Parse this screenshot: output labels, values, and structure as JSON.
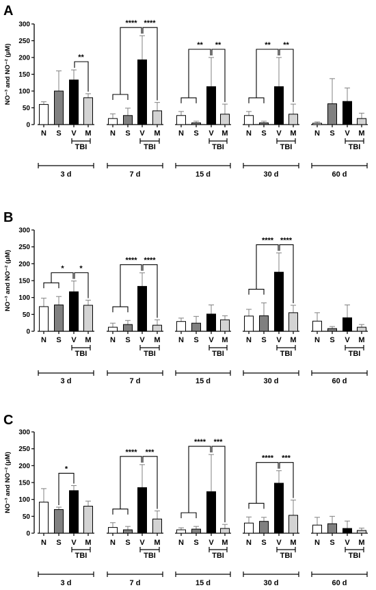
{
  "chart_data": [
    {
      "type": "bar",
      "panel": "A",
      "ylabel": "NO⁻³ and NO⁻² (μM)",
      "ylim": [
        0,
        300
      ],
      "yticks": [
        0,
        50,
        100,
        150,
        200,
        250,
        300
      ],
      "categories": [
        "N",
        "S",
        "V",
        "M"
      ],
      "groups": [
        {
          "label": "3 d",
          "values": [
            60,
            100,
            133,
            80
          ],
          "errors": [
            8,
            60,
            30,
            12
          ],
          "sig": [
            {
              "from": "N",
              "to": "M",
              "text": "**"
            }
          ]
        },
        {
          "label": "7 d",
          "values": [
            18,
            27,
            193,
            41
          ],
          "errors": [
            14,
            22,
            72,
            25
          ],
          "sig": [
            {
              "from": "V",
              "to": "NS",
              "text": "****"
            },
            {
              "from": "V",
              "to": "M",
              "text": "****"
            }
          ]
        },
        {
          "label": "15 d",
          "values": [
            27,
            5,
            113,
            31
          ],
          "errors": [
            12,
            5,
            87,
            30
          ],
          "sig": [
            {
              "from": "V",
              "to": "NS",
              "text": "**"
            },
            {
              "from": "V",
              "to": "M",
              "text": "**"
            }
          ]
        },
        {
          "label": "30 d",
          "values": [
            27,
            5,
            113,
            31
          ],
          "errors": [
            12,
            5,
            87,
            30
          ],
          "sig": [
            {
              "from": "V",
              "to": "NS",
              "text": "**"
            },
            {
              "from": "V",
              "to": "M",
              "text": "**"
            }
          ]
        },
        {
          "label": "60 d",
          "values": [
            4,
            62,
            69,
            18
          ],
          "errors": [
            4,
            75,
            40,
            16
          ],
          "sig": []
        }
      ],
      "tbi_label": "TBI"
    },
    {
      "type": "bar",
      "panel": "B",
      "ylabel": "NO⁻³ and NO⁻² (μM)",
      "ylim": [
        0,
        300
      ],
      "yticks": [
        0,
        50,
        100,
        150,
        200,
        250,
        300
      ],
      "categories": [
        "N",
        "S",
        "V",
        "M"
      ],
      "groups": [
        {
          "label": "3 d",
          "values": [
            73,
            78,
            117,
            77
          ],
          "errors": [
            25,
            25,
            32,
            15
          ],
          "sig": [
            {
              "from": "V",
              "to": "NS",
              "text": "*"
            },
            {
              "from": "V",
              "to": "M",
              "text": "*"
            }
          ]
        },
        {
          "label": "7 d",
          "values": [
            12,
            20,
            133,
            18
          ],
          "errors": [
            12,
            12,
            40,
            16
          ],
          "sig": [
            {
              "from": "V",
              "to": "NS",
              "text": "****"
            },
            {
              "from": "V",
              "to": "M",
              "text": "****"
            }
          ]
        },
        {
          "label": "15 d",
          "values": [
            29,
            24,
            51,
            34
          ],
          "errors": [
            10,
            20,
            27,
            12
          ],
          "sig": []
        },
        {
          "label": "30 d",
          "values": [
            45,
            46,
            175,
            55
          ],
          "errors": [
            20,
            38,
            57,
            22
          ],
          "sig": [
            {
              "from": "V",
              "to": "NS",
              "text": "****"
            },
            {
              "from": "V",
              "to": "M",
              "text": "****"
            }
          ]
        },
        {
          "label": "60 d",
          "values": [
            30,
            8,
            40,
            12
          ],
          "errors": [
            25,
            6,
            38,
            8
          ],
          "sig": []
        }
      ],
      "tbi_label": "TBI"
    },
    {
      "type": "bar",
      "panel": "C",
      "ylabel": "NO⁻³ and NO⁻² (μM)",
      "ylim": [
        0,
        300
      ],
      "yticks": [
        0,
        50,
        100,
        150,
        200,
        250,
        300
      ],
      "categories": [
        "N",
        "S",
        "V",
        "M"
      ],
      "groups": [
        {
          "label": "3 d",
          "values": [
            92,
            70,
            126,
            80
          ],
          "errors": [
            40,
            7,
            15,
            15
          ],
          "sig": [
            {
              "from": "S",
              "to": "V",
              "text": "*"
            }
          ]
        },
        {
          "label": "7 d",
          "values": [
            17,
            10,
            135,
            42
          ],
          "errors": [
            14,
            10,
            68,
            24
          ],
          "sig": [
            {
              "from": "V",
              "to": "NS",
              "text": "****"
            },
            {
              "from": "V",
              "to": "M",
              "text": "***"
            }
          ]
        },
        {
          "label": "15 d",
          "values": [
            10,
            12,
            123,
            14
          ],
          "errors": [
            6,
            8,
            110,
            12
          ],
          "sig": [
            {
              "from": "V",
              "to": "NS",
              "text": "****"
            },
            {
              "from": "V",
              "to": "M",
              "text": "***"
            }
          ]
        },
        {
          "label": "30 d",
          "values": [
            30,
            35,
            148,
            53
          ],
          "errors": [
            18,
            12,
            37,
            45
          ],
          "sig": [
            {
              "from": "V",
              "to": "NS",
              "text": "****"
            },
            {
              "from": "V",
              "to": "M",
              "text": "***"
            }
          ]
        },
        {
          "label": "60 d",
          "values": [
            24,
            28,
            14,
            8
          ],
          "errors": [
            23,
            22,
            22,
            7
          ],
          "sig": []
        }
      ],
      "tbi_label": "TBI"
    }
  ],
  "colors": {
    "N": "#ffffff",
    "S": "#808080",
    "V": "#000000",
    "M": "#d3d3d3",
    "axis": "#000000",
    "error": "#808080"
  }
}
